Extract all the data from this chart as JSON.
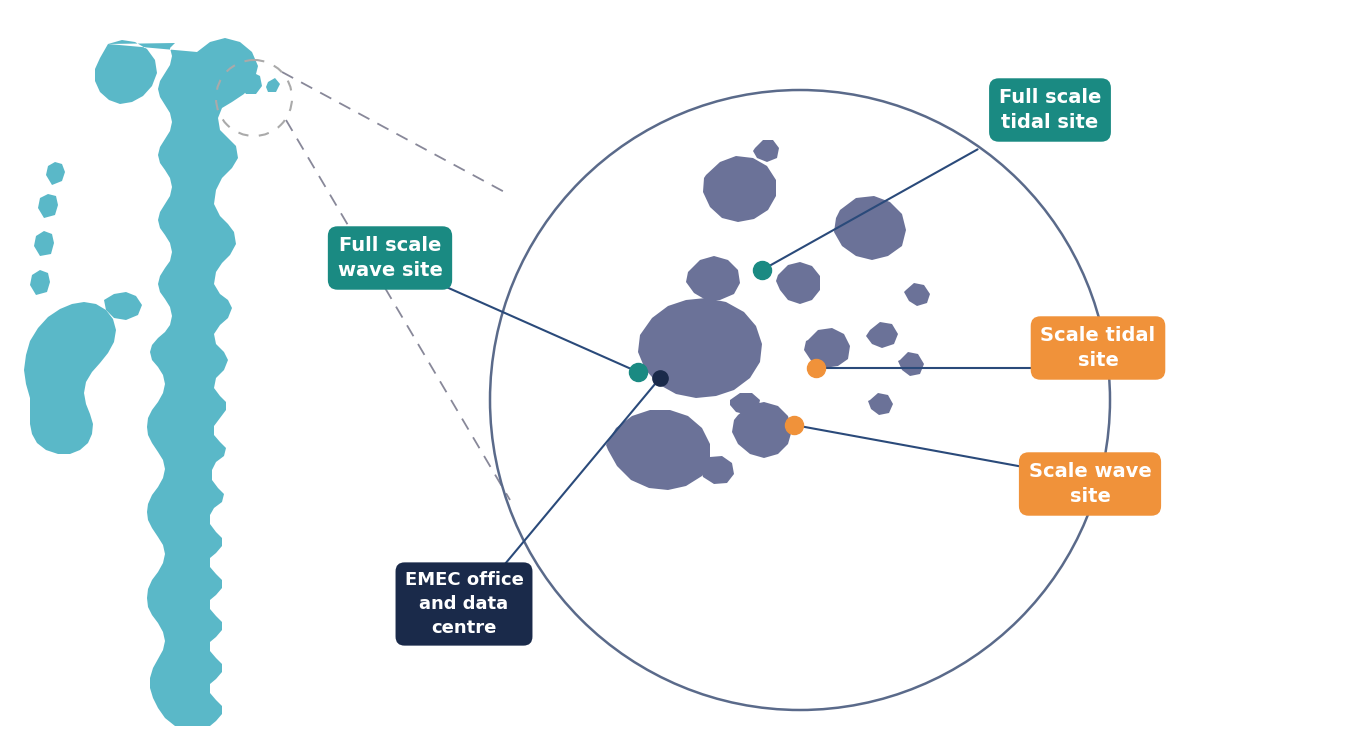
{
  "background_color": "#ffffff",
  "uk_color": "#5ab8c8",
  "orkney_color": "#6b7298",
  "circle_color": "#5a6a8a",
  "dashed_circle_color": "#aaaaaa",
  "dashed_line_color": "#888899",
  "teal_box_color": "#1a8a82",
  "orange_box_color": "#f0923a",
  "dark_box_color": "#1a2a4a",
  "line_color": "#2a4a7a",
  "dot_teal": "#1a8a82",
  "dot_orange": "#f0923a",
  "dot_dark": "#1a2a4a",
  "labels": {
    "full_scale_tidal": "Full scale\ntidal site",
    "full_scale_wave": "Full scale\nwave site",
    "scale_tidal": "Scale tidal\nsite",
    "scale_wave": "Scale wave\nsite",
    "emec_office": "EMEC office\nand data\ncentre"
  },
  "figsize": [
    13.5,
    7.56
  ],
  "dpi": 100
}
